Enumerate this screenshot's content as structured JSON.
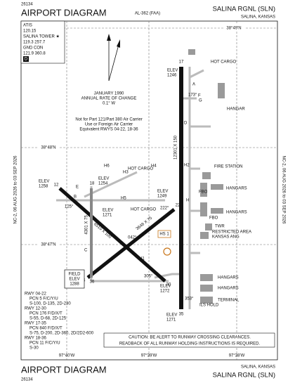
{
  "header": {
    "code": "26134",
    "title": "AIRPORT DIAGRAM",
    "reference": "AL-362 (FAA)",
    "airport": "SALINA RGNL (SLN)",
    "city": "SALINA, KANSAS"
  },
  "side_text": "NC-2, 06 AUG 2026 to 03 SEP 2026",
  "frequencies": [
    "ATIS",
    "120.15",
    "SALINA TOWER ★",
    "119.3 257.7",
    "GND CON",
    "121.9 360.8",
    "D"
  ],
  "variation": [
    "JANUARY 1990",
    "ANNUAL RATE OF CHANGE",
    "0.1° W"
  ],
  "note": [
    "Not for Part 121/Part 380 Air Carrier",
    "Use or Foreign Air Carrier",
    "Equivalent RWYS 04-22, 18-36"
  ],
  "grid": {
    "latitudes": [
      "38°49'N",
      "38°48'N",
      "38°47'N"
    ],
    "longitudes": [
      "97°40'W",
      "97°39'W",
      "97°38'W"
    ]
  },
  "runways": {
    "ends": [
      "17",
      "35",
      "18",
      "36",
      "04",
      "22",
      "12",
      "30"
    ],
    "dimensions": [
      "12301 X 150",
      "6510 X 100",
      "4301 X 75",
      "3648 X 75"
    ],
    "bearings": [
      "173°",
      "353°",
      "125°",
      "305°",
      "042°",
      "222°"
    ]
  },
  "elevations": [
    [
      "ELEV",
      "1246"
    ],
    [
      "ELEV",
      "1258"
    ],
    [
      "ELEV",
      "1254"
    ],
    [
      "ELEV",
      "1271"
    ],
    [
      "ELEV",
      "1249"
    ],
    [
      "ELEV",
      "1272"
    ],
    [
      "ELEV",
      "1271"
    ]
  ],
  "field_elevation": [
    "FIELD",
    "ELEV",
    "1288"
  ],
  "labels": {
    "hot_cargo": "HOT CARGO",
    "hangar": "HANGAR",
    "fire_station": "FIRE STATION",
    "hangars": "HANGARS",
    "terminal": "TERMINAL",
    "fbo": "FBO",
    "twr": "TWR",
    "restricted": [
      "RESTRICTED AREA",
      "KANSAS ANG"
    ],
    "ils_hold": "ILS HOLD",
    "hot_spot": "HS 1"
  },
  "taxiways": [
    "A",
    "B",
    "C",
    "D",
    "E",
    "F",
    "G",
    "H",
    "H2",
    "H3",
    "H4",
    "H5",
    "H6",
    "H1"
  ],
  "runway_info": [
    "RWY 04-22",
    "PCN 5 F/C/Y/U",
    "S-100, D-135, 2D-230",
    "RWY 12-30",
    "PCN 176 F/D/X/T",
    "S-55, D-68, 2D-125",
    "RWY 17-35",
    "PCN 840 F/D/X/T",
    "S-75, D-200, 2D-360, 2D/2D2-600",
    "RWY 18-36",
    "PCN 11 F/C/Y/U",
    "S-30"
  ],
  "caution": [
    "CAUTION: BE ALERT TO RUNWAY CROSSING CLEARANCES.",
    "READBACK OF ALL RUNWAY HOLDING INSTRUCTIONS IS REQUIRED."
  ]
}
